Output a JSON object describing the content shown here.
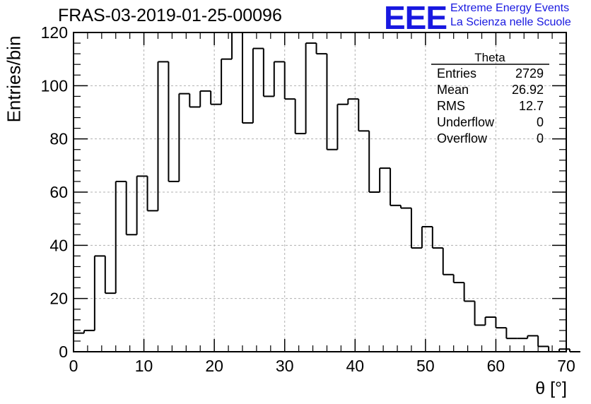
{
  "header": {
    "title": "FRAS-03-2019-01-25-00096",
    "logo_text": "EEE",
    "logo_line1": "Extreme Energy Events",
    "logo_line2": "La Scienza nelle Scuole"
  },
  "stats_box": {
    "title": "Theta",
    "rows": [
      {
        "label": "Entries",
        "value": "2729"
      },
      {
        "label": "Mean",
        "value": "26.92"
      },
      {
        "label": "RMS",
        "value": "12.7"
      },
      {
        "label": "Underflow",
        "value": "0"
      },
      {
        "label": "Overflow",
        "value": "0"
      }
    ]
  },
  "chart_data": {
    "type": "bar",
    "histogram": true,
    "title": "FRAS-03-2019-01-25-00096",
    "xlabel": "θ [°]",
    "ylabel": "Entries/bin",
    "xlim": [
      0,
      70
    ],
    "ylim": [
      0,
      120
    ],
    "grid": true,
    "bin_width": 1.5,
    "bin_edges_start": 0,
    "values": [
      7,
      8,
      36,
      22,
      64,
      44,
      66,
      53,
      109,
      64,
      97,
      92,
      98,
      93,
      110,
      120,
      86,
      114,
      96,
      109,
      95,
      82,
      116,
      112,
      76,
      93,
      95,
      83,
      60,
      69,
      55,
      54,
      39,
      47,
      39,
      29,
      26,
      19,
      10,
      13,
      9,
      5,
      5,
      6,
      2,
      0,
      1,
      0
    ],
    "xticks": [
      "0",
      "10",
      "20",
      "30",
      "40",
      "50",
      "60",
      "70"
    ],
    "yticks": [
      "0",
      "20",
      "40",
      "60",
      "80",
      "100",
      "120"
    ],
    "color": "#000000"
  }
}
